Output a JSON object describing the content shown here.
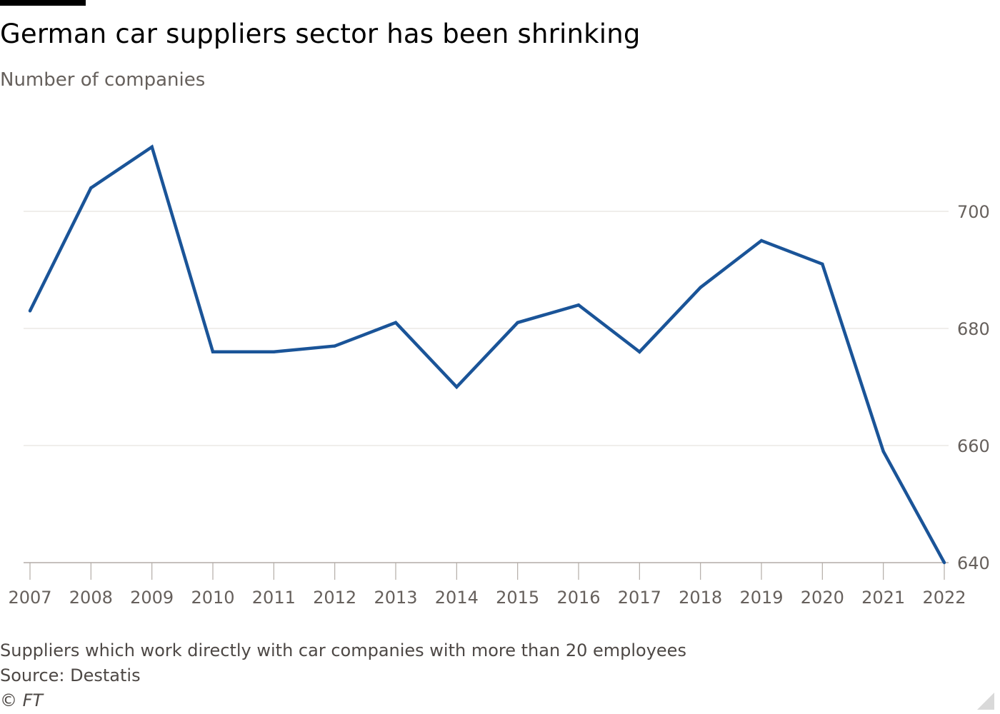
{
  "header": {
    "title": "German car suppliers sector has been shrinking",
    "subtitle": "Number of companies"
  },
  "footer": {
    "note": "Suppliers which work directly with car companies with more than 20 employees",
    "source": "Source: Destatis",
    "credit": "© FT"
  },
  "colors": {
    "line": "#1a5498",
    "grid": "#e6e3df",
    "axis": "#b3aca7",
    "text": "#66605c"
  },
  "chart_data": {
    "type": "line",
    "title": "German car suppliers sector has been shrinking",
    "subtitle": "Number of companies",
    "xlabel": "",
    "ylabel": "",
    "x": [
      2007,
      2008,
      2009,
      2010,
      2011,
      2012,
      2013,
      2014,
      2015,
      2016,
      2017,
      2018,
      2019,
      2020,
      2021,
      2022
    ],
    "series": [
      {
        "values": [
          683,
          704,
          711,
          676,
          676,
          677,
          681,
          670,
          681,
          684,
          676,
          687,
          695,
          691,
          659,
          640
        ]
      }
    ],
    "yticks": [
      640,
      660,
      680,
      700
    ],
    "ylim": [
      640,
      720
    ],
    "xlim": [
      2007,
      2022
    ],
    "y_axis_side": "right",
    "grid": true,
    "legend": "none"
  }
}
